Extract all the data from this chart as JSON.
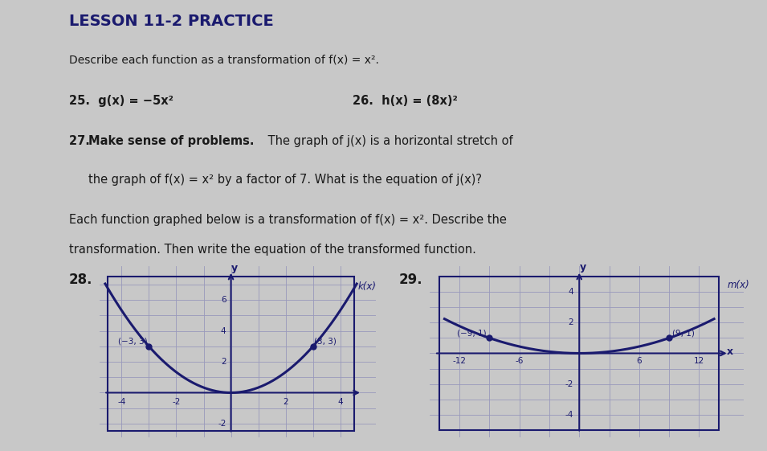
{
  "bg_color": "#c8c8c8",
  "title": "LESSON 11-2 PRACTICE",
  "title_color": "#1a1a6e",
  "text_color": "#1a1a1a",
  "curve_color": "#1a1a6e",
  "grid_color": "#9999bb",
  "axis_color": "#1a1a6e",
  "dot_color": "#1a1a6e",
  "graph1_points": [
    [
      -3,
      3
    ],
    [
      3,
      3
    ]
  ],
  "graph1_xlim": [
    -4.5,
    4.5
  ],
  "graph1_ylim": [
    -2.5,
    7.5
  ],
  "graph1_xticks": [
    -4,
    -2,
    2,
    4
  ],
  "graph1_yticks": [
    -2,
    2,
    4,
    6
  ],
  "graph1_func_label": "k(x)",
  "graph2_points": [
    [
      -9,
      1
    ],
    [
      9,
      1
    ]
  ],
  "graph2_xlim": [
    -14,
    14
  ],
  "graph2_ylim": [
    -5,
    5
  ],
  "graph2_xticks": [
    -12,
    -6,
    6,
    12
  ],
  "graph2_yticks": [
    -4,
    -2,
    2,
    4
  ],
  "graph2_func_label": "m(x)"
}
